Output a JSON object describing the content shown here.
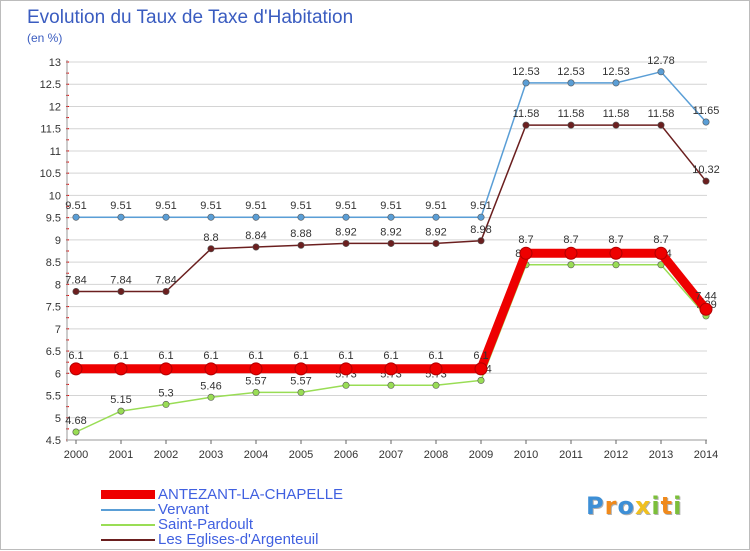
{
  "title": "Evolution du Taux de Taxe d'Habitation",
  "subtitle": "(en %)",
  "logo": [
    "P",
    "r",
    "o",
    "x",
    "i",
    "t",
    "i"
  ],
  "logo_colors": [
    "#3d8fd6",
    "#f08a1c",
    "#3d8fd6",
    "#f0c020",
    "#7cbf3a",
    "#f08a1c",
    "#7cbf3a"
  ],
  "chart_data": {
    "type": "line",
    "x": [
      "2000",
      "2001",
      "2002",
      "2003",
      "2004",
      "2005",
      "2006",
      "2007",
      "2008",
      "2009",
      "2010",
      "2011",
      "2012",
      "2013",
      "2014"
    ],
    "ylim": [
      4.5,
      13
    ],
    "yticks": [
      "4.5",
      "5",
      "5.5",
      "6",
      "6.5",
      "7",
      "7.5",
      "8",
      "8.5",
      "9",
      "9.5",
      "10",
      "10.5",
      "11",
      "11.5",
      "12",
      "12.5",
      "13"
    ],
    "grid": "horizontal",
    "series": [
      {
        "name": "Vervant",
        "color": "#5a9ed6",
        "line_width": 1.5,
        "values": [
          9.51,
          9.51,
          9.51,
          9.51,
          9.51,
          9.51,
          9.51,
          9.51,
          9.51,
          9.51,
          12.53,
          12.53,
          12.53,
          12.78,
          11.65
        ],
        "labels": [
          "9.51",
          "9.51",
          "9.51",
          "9.51",
          "9.51",
          "9.51",
          "9.51",
          "9.51",
          "9.51",
          "9.51",
          "12.53",
          "12.53",
          "12.53",
          "12.78",
          "11.65"
        ]
      },
      {
        "name": "Les Eglises-d'Argenteuil",
        "color": "#6b1f1f",
        "line_width": 1.5,
        "values": [
          7.84,
          7.84,
          7.84,
          8.8,
          8.84,
          8.88,
          8.92,
          8.92,
          8.92,
          8.98,
          11.58,
          11.58,
          11.58,
          11.58,
          10.32
        ],
        "labels": [
          "7.84",
          "7.84",
          "7.84",
          "8.8",
          "8.84",
          "8.88",
          "8.92",
          "8.92",
          "8.92",
          "8.98",
          "11.58",
          "11.58",
          "11.58",
          "11.58",
          "10.32"
        ]
      },
      {
        "name": "Saint-Pardoult",
        "color": "#99dd55",
        "line_width": 1.5,
        "values": [
          4.68,
          5.15,
          5.3,
          5.46,
          5.57,
          5.57,
          5.73,
          5.73,
          5.73,
          5.84,
          8.44,
          8.44,
          8.44,
          8.44,
          7.29
        ],
        "labels": [
          "4.68",
          "5.15",
          "5.3",
          "5.46",
          "5.57",
          "5.57",
          "5.73",
          "5.73",
          "5.73",
          "5.84",
          "8.44",
          "8.44",
          "8.44",
          "8.44",
          "7.29"
        ]
      },
      {
        "name": "ANTEZANT-LA-CHAPELLE",
        "color": "#ee0000",
        "line_width": 9,
        "values": [
          6.1,
          6.1,
          6.1,
          6.1,
          6.1,
          6.1,
          6.1,
          6.1,
          6.1,
          6.1,
          8.7,
          8.7,
          8.7,
          8.7,
          7.44
        ],
        "labels": [
          "6.1",
          "6.1",
          "6.1",
          "6.1",
          "6.1",
          "6.1",
          "6.1",
          "6.1",
          "6.1",
          "6.1",
          "8.7",
          "8.7",
          "8.7",
          "8.7",
          "7.44"
        ]
      }
    ],
    "legend": [
      {
        "name": "ANTEZANT-LA-CHAPELLE",
        "color": "#ee0000",
        "thick": true
      },
      {
        "name": "Vervant",
        "color": "#5a9ed6",
        "thick": false
      },
      {
        "name": "Saint-Pardoult",
        "color": "#99dd55",
        "thick": false
      },
      {
        "name": "Les Eglises-d'Argenteuil",
        "color": "#6b1f1f",
        "thick": false
      }
    ],
    "legend_position": "bottom-left"
  }
}
